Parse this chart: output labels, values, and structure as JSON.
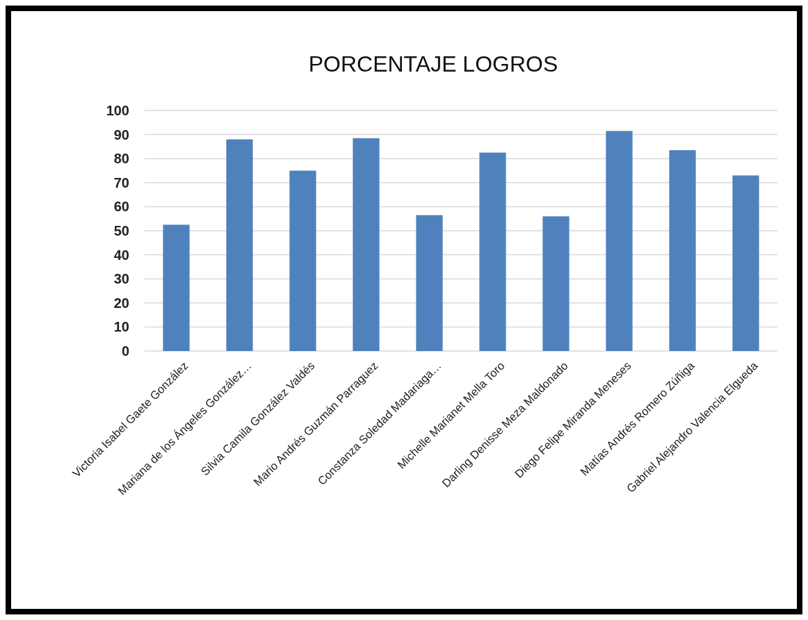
{
  "chart_data": {
    "type": "bar",
    "title": "PORCENTAJE LOGROS",
    "categories": [
      "Victoria Isabel Gaete González",
      "Mariana de los Ángeles González…",
      "Silvia Camila González Valdés",
      "Mario Andrés Guzmán Parraguez",
      "Constanza Soledad Madariaga…",
      "Michelle Marianet Mella Toro",
      "Darling Denisse Meza Maldonado",
      "Diego Felipe Miranda Meneses",
      "Matías Andrés Romero Zúñiga",
      "Gabriel Alejandro Valencia Elgueda"
    ],
    "values": [
      52.5,
      88,
      75,
      88.5,
      56.5,
      82.5,
      56,
      91.5,
      83.5,
      73
    ],
    "color": "#4f81bd",
    "ylim": [
      0,
      100
    ],
    "yticks": [
      0,
      10,
      20,
      30,
      40,
      50,
      60,
      70,
      80,
      90,
      100
    ],
    "grid": "y"
  }
}
